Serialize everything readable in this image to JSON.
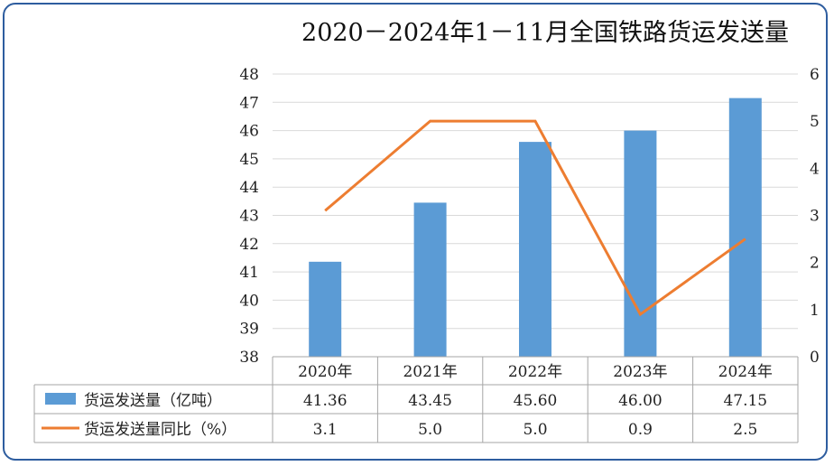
{
  "chart_data": {
    "type": "bar",
    "title": "2020－2024年1－11月全国铁路货运发送量",
    "categories": [
      "2020年",
      "2021年",
      "2022年",
      "2023年",
      "2024年"
    ],
    "series": [
      {
        "name": "货运发送量（亿吨）",
        "type": "bar",
        "axis": "left",
        "color": "#5b9bd5",
        "values": [
          41.36,
          43.45,
          45.6,
          46.0,
          47.15
        ],
        "labels": [
          "41.36",
          "43.45",
          "45.60",
          "46.00",
          "47.15"
        ]
      },
      {
        "name": "货运发送量同比（%）",
        "type": "line",
        "axis": "right",
        "color": "#ed7d31",
        "values": [
          3.1,
          5.0,
          5.0,
          0.9,
          2.5
        ],
        "labels": [
          "3.1",
          "5.0",
          "5.0",
          "0.9",
          "2.5"
        ]
      }
    ],
    "y_left": {
      "min": 38,
      "max": 48,
      "ticks": [
        "38",
        "39",
        "40",
        "41",
        "42",
        "43",
        "44",
        "45",
        "46",
        "47",
        "48"
      ]
    },
    "y_right": {
      "min": 0,
      "max": 6,
      "ticks": [
        "0",
        "1",
        "2",
        "3",
        "4",
        "5",
        "6"
      ]
    },
    "grid": true,
    "legend": "data-table"
  }
}
